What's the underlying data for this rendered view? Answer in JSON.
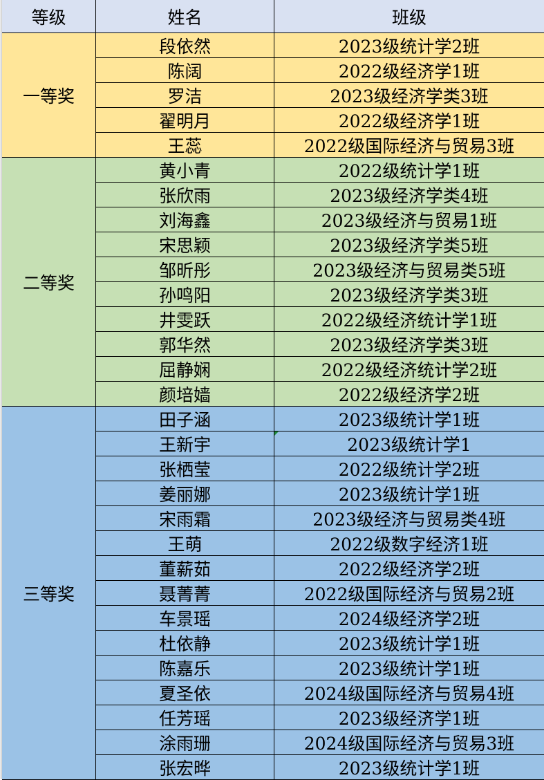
{
  "header": {
    "level": "等级",
    "name": "姓名",
    "class": "班级"
  },
  "colors": {
    "header": "#d9e1f2",
    "first": "#ffe699",
    "second": "#c6e0b4",
    "third": "#9bc2e6"
  },
  "groups": [
    {
      "level": "一等奖",
      "color": "#ffe699",
      "rows": [
        {
          "name": "段依然",
          "class": "2023级统计学2班"
        },
        {
          "name": "陈阔",
          "class": "2022级经济学1班"
        },
        {
          "name": "罗洁",
          "class": "2023级经济学类3班"
        },
        {
          "name": "翟明月",
          "class": "2022级经济学1班"
        },
        {
          "name": "王蕊",
          "class": "2022级国际经济与贸易3班"
        }
      ]
    },
    {
      "level": "二等奖",
      "color": "#c6e0b4",
      "rows": [
        {
          "name": "黄小青",
          "class": "2022级统计学1班"
        },
        {
          "name": "张欣雨",
          "class": "2023级经济学类4班"
        },
        {
          "name": "刘海鑫",
          "class": "2023级经济与贸易1班"
        },
        {
          "name": "宋思颖",
          "class": "2023级经济学类5班"
        },
        {
          "name": "邹昕彤",
          "class": "2023级经济与贸易类5班"
        },
        {
          "name": "孙鸣阳",
          "class": "2023级经济学类3班"
        },
        {
          "name": "井雯跃",
          "class": "2022级经济统计学1班"
        },
        {
          "name": "郭华然",
          "class": "2023级经济学类3班"
        },
        {
          "name": "屈静娴",
          "class": "2022级经济统计学2班"
        },
        {
          "name": "颜培嫱",
          "class": "2022级经济学2班"
        }
      ]
    },
    {
      "level": "三等奖",
      "color": "#9bc2e6",
      "rows": [
        {
          "name": "田子涵",
          "class": "2023级统计学1班"
        },
        {
          "name": "王新宇",
          "class": "2023级统计学1",
          "error_marker": true
        },
        {
          "name": "张栖莹",
          "class": "2022级统计学2班"
        },
        {
          "name": "姜丽娜",
          "class": "2023级统计学1班"
        },
        {
          "name": "宋雨霜",
          "class": "2023级经济与贸易类4班"
        },
        {
          "name": "王萌",
          "class": "2022级数字经济1班"
        },
        {
          "name": "董薪茹",
          "class": "2022级经济学2班"
        },
        {
          "name": "聂菁菁",
          "class": "2022级国际经济与贸易2班"
        },
        {
          "name": "车景瑶",
          "class": "2024级经济学2班"
        },
        {
          "name": "杜依静",
          "class": "2023级统计学1班"
        },
        {
          "name": "陈嘉乐",
          "class": "2023级统计学1班"
        },
        {
          "name": "夏圣依",
          "class": "2024级国际经济与贸易4班"
        },
        {
          "name": "任芳瑶",
          "class": "2023级经济学1班"
        },
        {
          "name": "涂雨珊",
          "class": "2024级国际经济与贸易3班"
        },
        {
          "name": "张宏晔",
          "class": "2023级统计学1班"
        }
      ]
    }
  ]
}
